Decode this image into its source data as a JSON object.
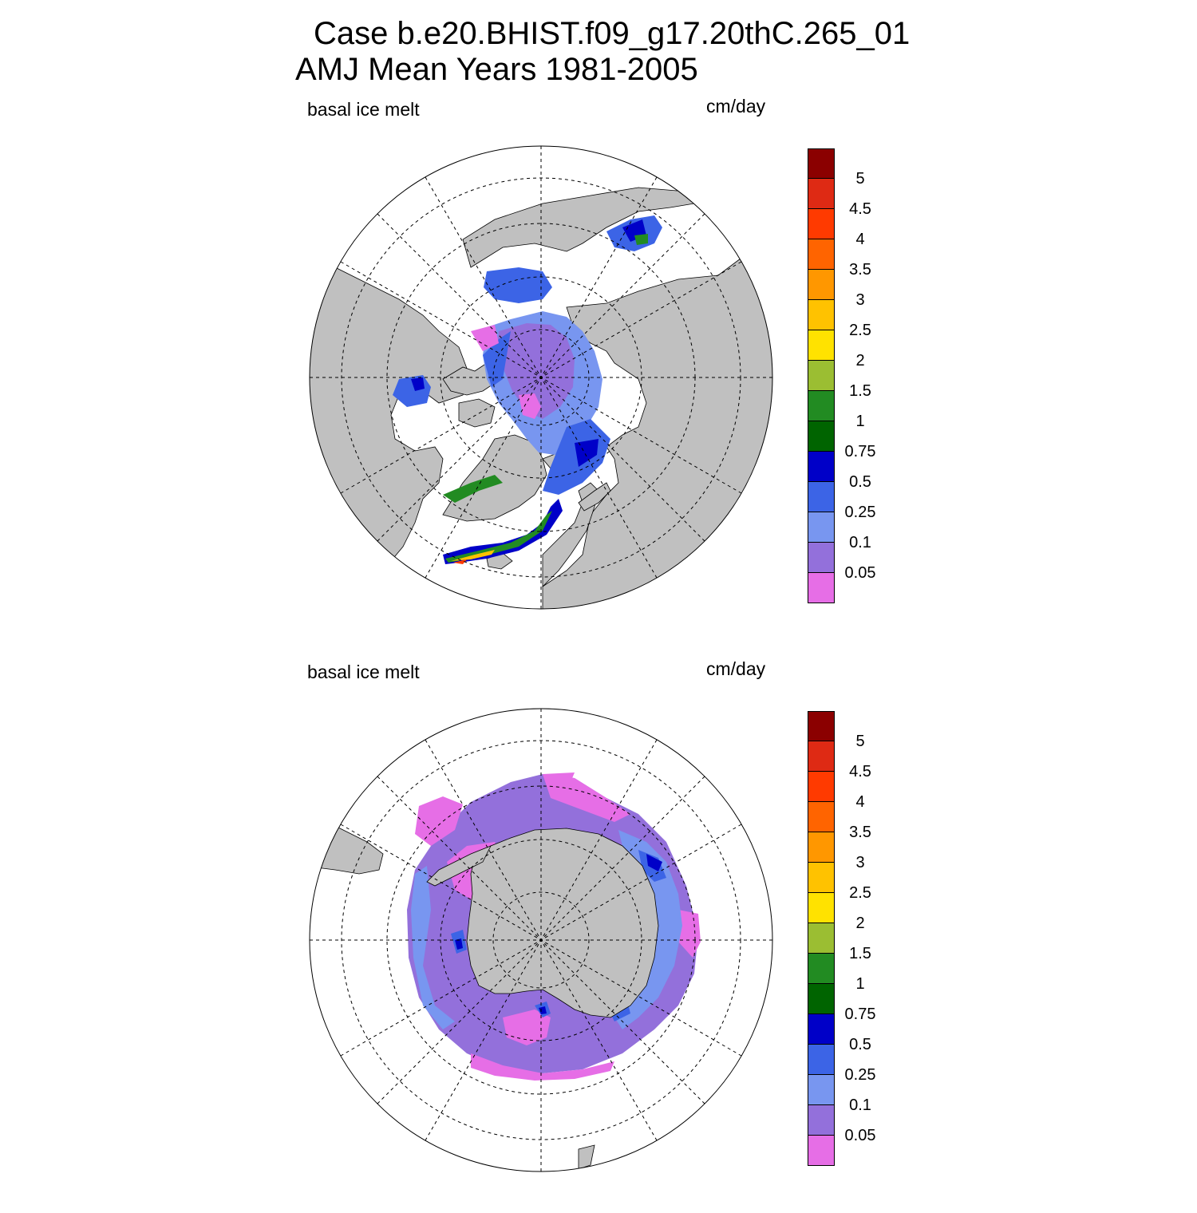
{
  "title": {
    "line1": "Case b.e20.BHIST.f09_g17.20thC.265_01",
    "line2": "AMJ Mean   Years 1981-2005"
  },
  "panels": [
    {
      "hemisphere": "north",
      "variable_label": "basal ice melt",
      "units_label": "cm/day"
    },
    {
      "hemisphere": "south",
      "variable_label": "basal ice melt",
      "units_label": "cm/day"
    }
  ],
  "colorbar": {
    "levels": [
      "5",
      "4.5",
      "4",
      "3.5",
      "3",
      "2.5",
      "2",
      "1.5",
      "1",
      "0.75",
      "0.5",
      "0.25",
      "0.1",
      "0.05"
    ],
    "colors": [
      "#8b0000",
      "#de2a14",
      "#ff3a00",
      "#ff6400",
      "#ff9700",
      "#ffc200",
      "#ffe200",
      "#9bbe32",
      "#228b22",
      "#006400",
      "#0000c8",
      "#3c64e6",
      "#7896f0",
      "#9370db",
      "#e66ee6"
    ]
  },
  "map_colors": {
    "land": "#c0c0c0",
    "ocean": "#ffffff",
    "outline": "#000000"
  }
}
